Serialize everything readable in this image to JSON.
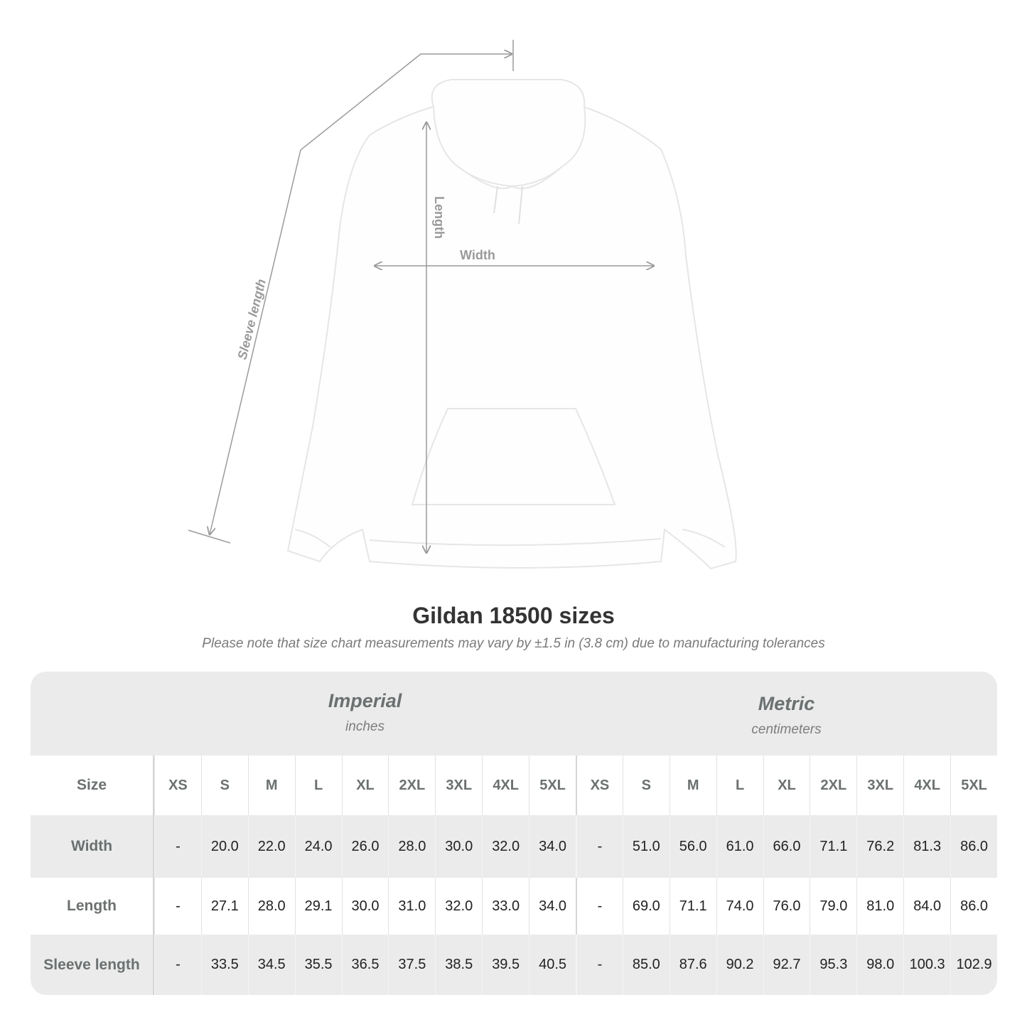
{
  "illustration": {
    "labels": {
      "length": "Length",
      "width": "Width",
      "sleeve": "Sleeve length"
    },
    "garment_color": "#ffffff",
    "guide_color": "#9a9a9a"
  },
  "title": "Gildan 18500 sizes",
  "subtitle": "Please note that size chart measurements may vary by ±1.5 in (3.8 cm) due to manufacturing tolerances",
  "systems": [
    {
      "name": "Imperial",
      "unit": "inches"
    },
    {
      "name": "Metric",
      "unit": "centimeters"
    }
  ],
  "size_label": "Size",
  "sizes": [
    "XS",
    "S",
    "M",
    "L",
    "XL",
    "2XL",
    "3XL",
    "4XL",
    "5XL"
  ],
  "rows": [
    {
      "label": "Width",
      "imperial": [
        "-",
        "20.0",
        "22.0",
        "24.0",
        "26.0",
        "28.0",
        "30.0",
        "32.0",
        "34.0"
      ],
      "metric": [
        "-",
        "51.0",
        "56.0",
        "61.0",
        "66.0",
        "71.1",
        "76.2",
        "81.3",
        "86.0"
      ]
    },
    {
      "label": "Length",
      "imperial": [
        "-",
        "27.1",
        "28.0",
        "29.1",
        "30.0",
        "31.0",
        "32.0",
        "33.0",
        "34.0"
      ],
      "metric": [
        "-",
        "69.0",
        "71.1",
        "74.0",
        "76.0",
        "79.0",
        "81.0",
        "84.0",
        "86.0"
      ]
    },
    {
      "label": "Sleeve length",
      "imperial": [
        "-",
        "33.5",
        "34.5",
        "35.5",
        "36.5",
        "37.5",
        "38.5",
        "39.5",
        "40.5"
      ],
      "metric": [
        "-",
        "85.0",
        "87.6",
        "90.2",
        "92.7",
        "95.3",
        "98.0",
        "100.3",
        "102.9"
      ]
    }
  ]
}
